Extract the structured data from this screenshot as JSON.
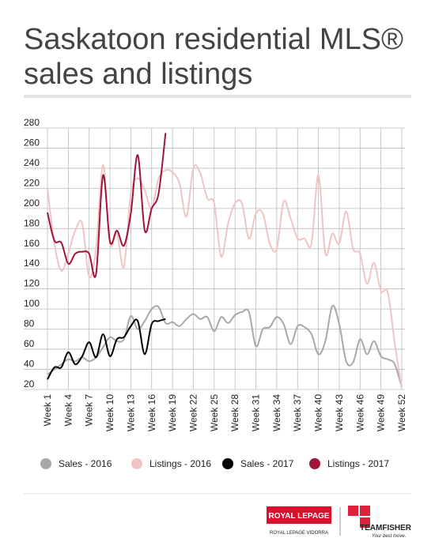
{
  "chart_data": {
    "type": "line",
    "title": "Saskatoon residential MLS® sales and listings",
    "categories": [
      "Week 1",
      null,
      null,
      "Week 4",
      null,
      null,
      "Week 7",
      null,
      null,
      "Week 10",
      null,
      null,
      "Week 13",
      null,
      null,
      "Week 16",
      null,
      null,
      "Week 19",
      null,
      null,
      "Week 22",
      null,
      null,
      "Week 25",
      null,
      null,
      "Week 28",
      null,
      null,
      "Week 31",
      null,
      null,
      "Week 34",
      null,
      null,
      "Week 37",
      null,
      null,
      "Week 40",
      null,
      null,
      "Week 43",
      null,
      null,
      "Week 46",
      null,
      null,
      "Week 49",
      null,
      null,
      "Week 52"
    ],
    "ylim": [
      20,
      280
    ],
    "yticks": [
      20,
      40,
      60,
      80,
      100,
      120,
      140,
      160,
      180,
      200,
      220,
      240,
      260,
      280
    ],
    "grid": true,
    "legend": "bottom",
    "series": [
      {
        "name": "Sales - 2016",
        "color": "#a8a8a8",
        "values": [
          35,
          40,
          45,
          50,
          48,
          52,
          48,
          52,
          62,
          72,
          68,
          70,
          93,
          80,
          88,
          100,
          102,
          86,
          87,
          83,
          90,
          95,
          90,
          92,
          78,
          92,
          86,
          94,
          97,
          97,
          63,
          80,
          82,
          92,
          85,
          65,
          83,
          82,
          75,
          55,
          68,
          103,
          85,
          48,
          47,
          70,
          55,
          68,
          53,
          50,
          45,
          22
        ]
      },
      {
        "name": "Listings - 2016",
        "color": "#f0c4c4",
        "values": [
          220,
          165,
          138,
          155,
          178,
          185,
          132,
          160,
          243,
          165,
          175,
          142,
          215,
          230,
          218,
          200,
          230,
          238,
          236,
          225,
          192,
          240,
          235,
          210,
          205,
          152,
          185,
          205,
          205,
          170,
          195,
          195,
          165,
          160,
          207,
          190,
          170,
          170,
          165,
          233,
          155,
          175,
          165,
          197,
          160,
          155,
          125,
          146,
          118,
          116,
          65,
          22
        ]
      },
      {
        "name": "Sales - 2017",
        "color": "#000000",
        "values": [
          30,
          42,
          42,
          57,
          45,
          53,
          67,
          52,
          75,
          53,
          70,
          72,
          83,
          88,
          55,
          85,
          88,
          90,
          null,
          null,
          null,
          null,
          null,
          null,
          null,
          null,
          null,
          null,
          null,
          null,
          null,
          null,
          null,
          null,
          null,
          null,
          null,
          null,
          null,
          null,
          null,
          null,
          null,
          null,
          null,
          null,
          null,
          null,
          null,
          null,
          null,
          null
        ]
      },
      {
        "name": "Listings - 2017",
        "color": "#a0163a",
        "values": [
          196,
          168,
          166,
          145,
          155,
          157,
          155,
          135,
          233,
          167,
          178,
          163,
          195,
          253,
          178,
          200,
          215,
          275,
          null,
          null,
          null,
          null,
          null,
          null,
          null,
          null,
          null,
          null,
          null,
          null,
          null,
          null,
          null,
          null,
          null,
          null,
          null,
          null,
          null,
          null,
          null,
          null,
          null,
          null,
          null,
          null,
          null,
          null,
          null,
          null,
          null,
          null
        ]
      }
    ]
  },
  "logo": {
    "brand": "ROYAL LEPAGE",
    "office": "ROYAL LEPAGE VIDORRA",
    "team": "TEAMFISHER",
    "tagline": "Your best move."
  }
}
